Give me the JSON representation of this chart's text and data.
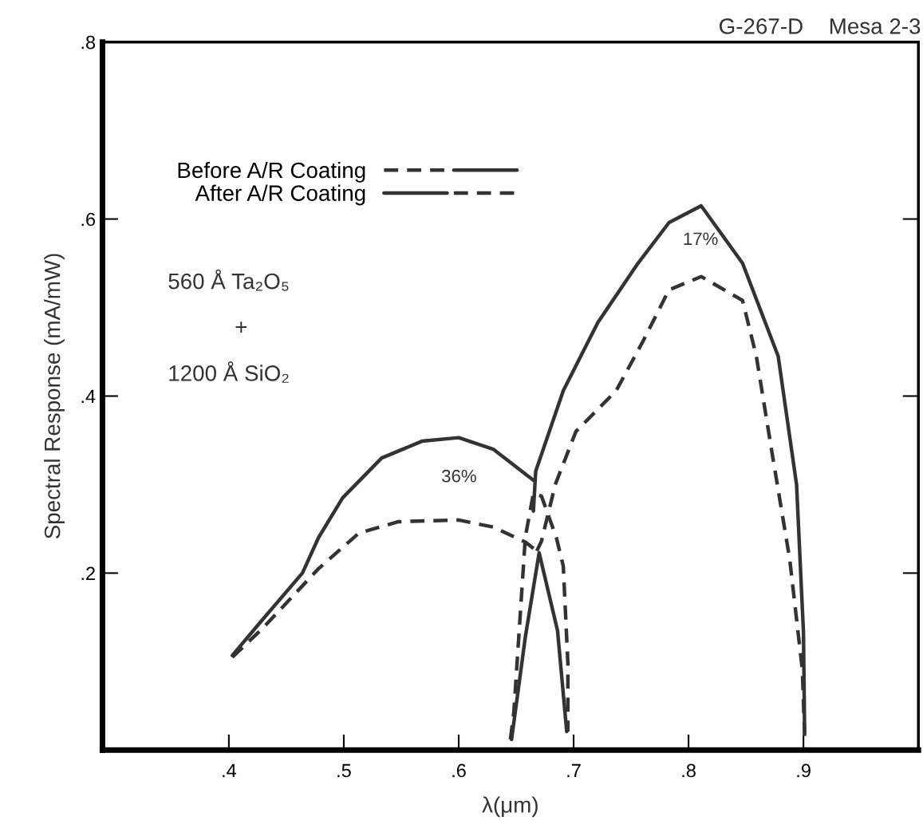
{
  "chart_data": {
    "type": "line",
    "xlabel": "λ(μm)",
    "ylabel": "Spectral Response (mA/mW)",
    "xlim": [
      0.29,
      1.0
    ],
    "ylim": [
      0,
      0.8
    ],
    "xticks": [
      {
        "value": 0.4,
        "label": ".4"
      },
      {
        "value": 0.5,
        "label": ".5"
      },
      {
        "value": 0.6,
        "label": ".6"
      },
      {
        "value": 0.7,
        "label": ".7"
      },
      {
        "value": 0.8,
        "label": ".8"
      },
      {
        "value": 0.9,
        "label": ".9"
      }
    ],
    "yticks": [
      {
        "value": 0.2,
        "label": ".2"
      },
      {
        "value": 0.4,
        "label": ".4"
      },
      {
        "value": 0.6,
        "label": ".6"
      },
      {
        "value": 0.8,
        "label": ".8"
      }
    ],
    "grid": false,
    "legend": "left",
    "series": [
      {
        "name": "Before A/R Coating",
        "color": "#333333",
        "line_style": "dashed",
        "x": [
          0.403,
          0.429,
          0.478,
          0.513,
          0.547,
          0.6,
          0.63,
          0.658,
          0.668
        ],
        "values": [
          0.105,
          0.137,
          0.205,
          0.245,
          0.258,
          0.26,
          0.252,
          0.235,
          0.225
        ]
      },
      {
        "color": "#333333",
        "line_style": "dashed",
        "x": [
          0.668,
          0.672,
          0.684,
          0.702,
          0.737,
          0.76,
          0.783,
          0.811,
          0.847,
          0.859,
          0.872,
          0.888,
          0.899,
          0.901
        ],
        "values": [
          0.225,
          0.236,
          0.3,
          0.36,
          0.406,
          0.461,
          0.52,
          0.535,
          0.508,
          0.445,
          0.341,
          0.216,
          0.091,
          0.016
        ]
      },
      {
        "color": "#333333",
        "line_style": "solid",
        "x": [
          0.646,
          0.658,
          0.67,
          0.686,
          0.694
        ],
        "values": [
          0.012,
          0.128,
          0.223,
          0.135,
          0.021
        ]
      },
      {
        "name": "After A/R Coating",
        "color": "#333333",
        "line_style": "solid",
        "x": [
          0.403,
          0.429,
          0.464,
          0.478,
          0.499,
          0.533,
          0.568,
          0.6,
          0.63,
          0.665
        ],
        "values": [
          0.107,
          0.147,
          0.2,
          0.24,
          0.285,
          0.33,
          0.349,
          0.353,
          0.34,
          0.305
        ]
      },
      {
        "color": "#333333",
        "line_style": "solid",
        "x": [
          0.665,
          0.667,
          0.691,
          0.721,
          0.756,
          0.783,
          0.811,
          0.847,
          0.878,
          0.894,
          0.9,
          0.901
        ],
        "values": [
          0.27,
          0.315,
          0.406,
          0.483,
          0.55,
          0.596,
          0.615,
          0.55,
          0.445,
          0.3,
          0.133,
          0.02
        ]
      },
      {
        "color": "#333333",
        "line_style": "dashed",
        "x": [
          0.645,
          0.648,
          0.658,
          0.665,
          0.672,
          0.685,
          0.691,
          0.695,
          0.695
        ],
        "values": [
          0.012,
          0.043,
          0.241,
          0.29,
          0.287,
          0.24,
          0.208,
          0.098,
          0.021
        ]
      }
    ],
    "annotations": [
      "G-267-D",
      "Mesa 2-3",
      "560 Å Ta₂O₅",
      "+",
      "1200 Å SiO₂",
      "36%",
      "17%"
    ]
  }
}
